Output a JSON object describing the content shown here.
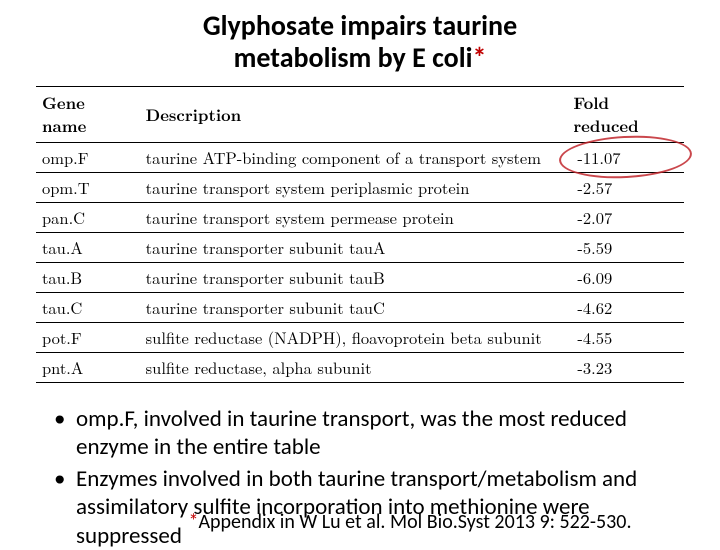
{
  "title": {
    "line1": "Glyphosate impairs taurine",
    "line2_pre": "metabolism by E coli",
    "asterisk": "*"
  },
  "table": {
    "columns": [
      "Gene name",
      "Description",
      "Fold reduced"
    ],
    "rows": [
      {
        "gene": "omp.F",
        "desc": "taurine ATP-binding component of a transport system",
        "fold": "-11.07"
      },
      {
        "gene": "opm.T",
        "desc": "taurine transport system periplasmic protein",
        "fold": "-2.57"
      },
      {
        "gene": "pan.C",
        "desc": "taurine transport system permease protein",
        "fold": "-2.07"
      },
      {
        "gene": "tau.A",
        "desc": "taurine transporter subunit tauA",
        "fold": "-5.59"
      },
      {
        "gene": "tau.B",
        "desc": "taurine transporter subunit tauB",
        "fold": "-6.09"
      },
      {
        "gene": "tau.C",
        "desc": "taurine transporter subunit tauC",
        "fold": "-4.62"
      },
      {
        "gene": "pot.F",
        "desc": "sulfite reductase (NADPH), floavoprotein beta subunit",
        "fold": "-4.55"
      },
      {
        "gene": "pnt.A",
        "desc": "sulfite reductase, alpha subunit",
        "fold": "-3.23"
      }
    ],
    "highlight": {
      "row_index": 0,
      "color": "#c1272d"
    }
  },
  "bullets": [
    "omp.F, involved in taurine transport, was the most reduced enzyme in the entire table",
    "Enzymes involved in both taurine transport/metabolism and assimilatory sulfite incorporation into methionine were suppressed"
  ],
  "citation": {
    "asterisk": "*",
    "text": "Appendix in W Lu et al. Mol Bio.Syst 2013 9: 522-530."
  },
  "style": {
    "background_color": "#ffffff",
    "text_color": "#000000",
    "accent_color": "#c00000",
    "annotation_color": "#c1272d",
    "title_fontsize": 28,
    "table_fontsize": 16.5,
    "bullet_fontsize": 23,
    "citation_fontsize": 20,
    "table_font": "serif",
    "body_font": "Calibri"
  }
}
